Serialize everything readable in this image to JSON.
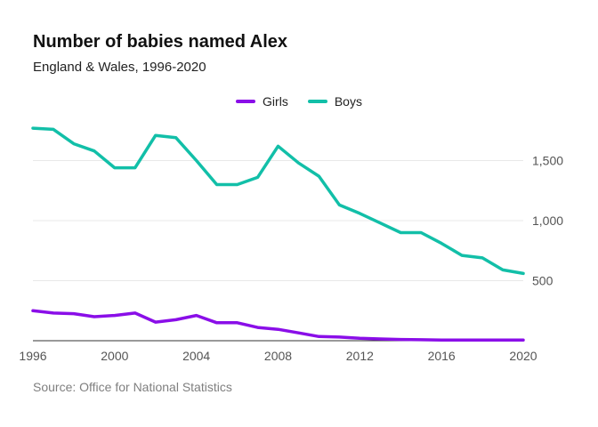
{
  "header": {
    "title": "Number of babies named Alex",
    "subtitle": "England & Wales, 1996-2020"
  },
  "footer": {
    "source": "Source: Office for National Statistics"
  },
  "colors": {
    "girls": "#8a0ee8",
    "boys": "#12bfa8",
    "grid": "#e8e8e8",
    "axis": "#333333"
  },
  "chart_data": {
    "type": "line",
    "title": "Number of babies named Alex",
    "subtitle": "England & Wales, 1996-2020",
    "xlabel": "",
    "ylabel": "",
    "xlim": [
      1996,
      2020
    ],
    "ylim": [
      0,
      1800
    ],
    "x_ticks": [
      1996,
      2000,
      2004,
      2008,
      2012,
      2016,
      2020
    ],
    "x_tick_labels": [
      "1996",
      "2000",
      "2004",
      "2008",
      "2012",
      "2016",
      "2020"
    ],
    "y_ticks": [
      500,
      1000,
      1500
    ],
    "y_tick_labels": [
      "500",
      "1,000",
      "1,500"
    ],
    "grid": true,
    "legend_position": "top-center",
    "x": [
      1996,
      1997,
      1998,
      1999,
      2000,
      2001,
      2002,
      2003,
      2004,
      2005,
      2006,
      2007,
      2008,
      2009,
      2010,
      2011,
      2012,
      2013,
      2014,
      2015,
      2016,
      2017,
      2018,
      2019,
      2020
    ],
    "series": [
      {
        "name": "Girls",
        "values": [
          250,
          230,
          225,
          200,
          210,
          230,
          155,
          175,
          210,
          150,
          150,
          110,
          95,
          65,
          35,
          30,
          20,
          15,
          10,
          8,
          5,
          5,
          5,
          5,
          5
        ]
      },
      {
        "name": "Boys",
        "values": [
          1770,
          1760,
          1640,
          1580,
          1440,
          1440,
          1710,
          1690,
          1500,
          1300,
          1300,
          1360,
          1620,
          1480,
          1370,
          1130,
          1060,
          980,
          900,
          900,
          810,
          710,
          690,
          590,
          560
        ]
      }
    ]
  }
}
